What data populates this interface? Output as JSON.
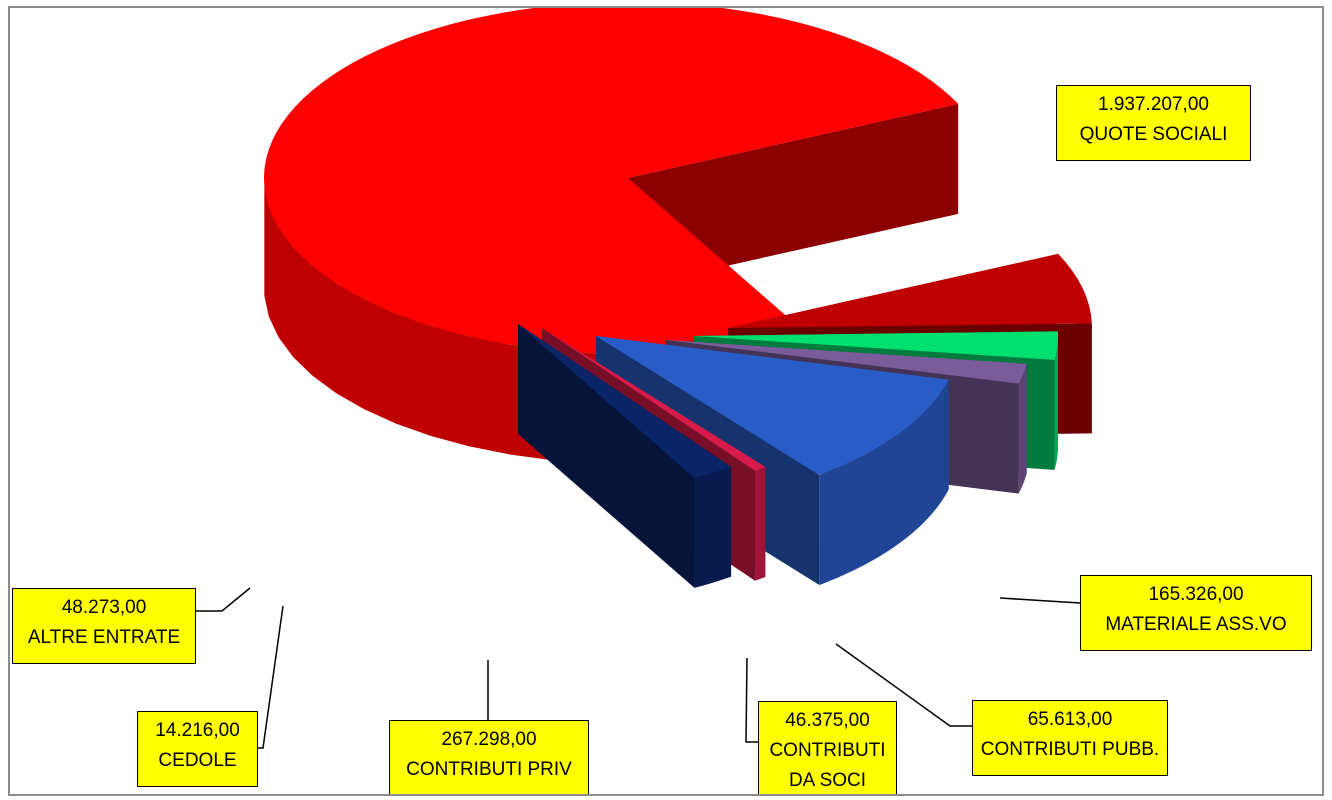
{
  "chart_data": {
    "type": "pie",
    "style": "3d-exploded",
    "legend": "none",
    "slices": [
      {
        "key": "quote",
        "name": "QUOTE SOCIALI",
        "value": 1937207.0,
        "value_label": "1.937.207,00",
        "color": "#ff0000"
      },
      {
        "key": "materiale",
        "name": "MATERIALE ASS.VO",
        "value": 165326.0,
        "value_label": "165.326,00",
        "color": "#c00000"
      },
      {
        "key": "pubb",
        "name": "CONTRIBUTI PUBB.",
        "value": 65613.0,
        "value_label": "65.613,00",
        "color": "#00e070"
      },
      {
        "key": "soci",
        "name": "CONTRIBUTI DA SOCI",
        "name_lines": [
          "CONTRIBUTI",
          "DA SOCI"
        ],
        "value": 46375.0,
        "value_label": "46.375,00",
        "color": "#7a5c9a"
      },
      {
        "key": "priv",
        "name": "CONTRIBUTI PRIV",
        "value": 267298.0,
        "value_label": "267.298,00",
        "color": "#2a5cc8"
      },
      {
        "key": "cedole",
        "name": "CEDOLE",
        "value": 14216.0,
        "value_label": "14.216,00",
        "color": "#d81b4a"
      },
      {
        "key": "altre",
        "name": "ALTRE ENTRATE",
        "value": 48273.0,
        "value_label": "48.273,00",
        "color": "#0a2468"
      }
    ]
  }
}
